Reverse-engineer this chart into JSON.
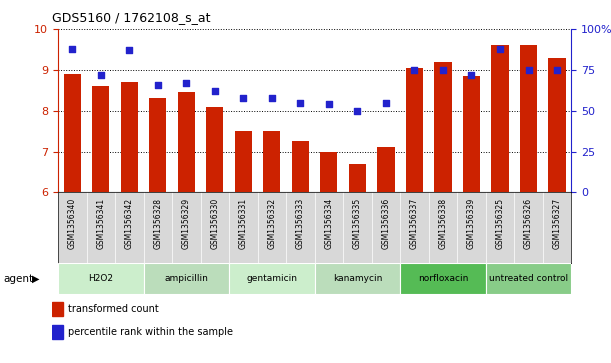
{
  "title": "GDS5160 / 1762108_s_at",
  "samples": [
    "GSM1356340",
    "GSM1356341",
    "GSM1356342",
    "GSM1356328",
    "GSM1356329",
    "GSM1356330",
    "GSM1356331",
    "GSM1356332",
    "GSM1356333",
    "GSM1356334",
    "GSM1356335",
    "GSM1356336",
    "GSM1356337",
    "GSM1356338",
    "GSM1356339",
    "GSM1356325",
    "GSM1356326",
    "GSM1356327"
  ],
  "bar_values": [
    8.9,
    8.6,
    8.7,
    8.3,
    8.45,
    8.1,
    7.5,
    7.5,
    7.25,
    7.0,
    6.7,
    7.1,
    9.05,
    9.2,
    8.85,
    9.6,
    9.6,
    9.3
  ],
  "dot_values": [
    88,
    72,
    87,
    66,
    67,
    62,
    58,
    58,
    55,
    54,
    50,
    55,
    75,
    75,
    72,
    88,
    75,
    75
  ],
  "ylim_left": [
    6,
    10
  ],
  "ylim_right": [
    0,
    100
  ],
  "yticks_left": [
    6,
    7,
    8,
    9,
    10
  ],
  "yticks_right": [
    0,
    25,
    50,
    75,
    100
  ],
  "ytick_labels_right": [
    "0",
    "25",
    "50",
    "75",
    "100%"
  ],
  "groups": [
    {
      "label": "H2O2",
      "start": 0,
      "end": 3,
      "color": "#cceecc"
    },
    {
      "label": "ampicillin",
      "start": 3,
      "end": 6,
      "color": "#bbddbb"
    },
    {
      "label": "gentamicin",
      "start": 6,
      "end": 9,
      "color": "#cceecc"
    },
    {
      "label": "kanamycin",
      "start": 9,
      "end": 12,
      "color": "#bbddbb"
    },
    {
      "label": "norfloxacin",
      "start": 12,
      "end": 15,
      "color": "#55bb55"
    },
    {
      "label": "untreated control",
      "start": 15,
      "end": 18,
      "color": "#88cc88"
    }
  ],
  "bar_color": "#cc2200",
  "dot_color": "#2222cc",
  "tick_label_color_left": "#cc2200",
  "tick_label_color_right": "#2222cc",
  "legend_items": [
    "transformed count",
    "percentile rank within the sample"
  ],
  "agent_label": "agent",
  "background_color": "#ffffff",
  "grid_color": "#000000"
}
